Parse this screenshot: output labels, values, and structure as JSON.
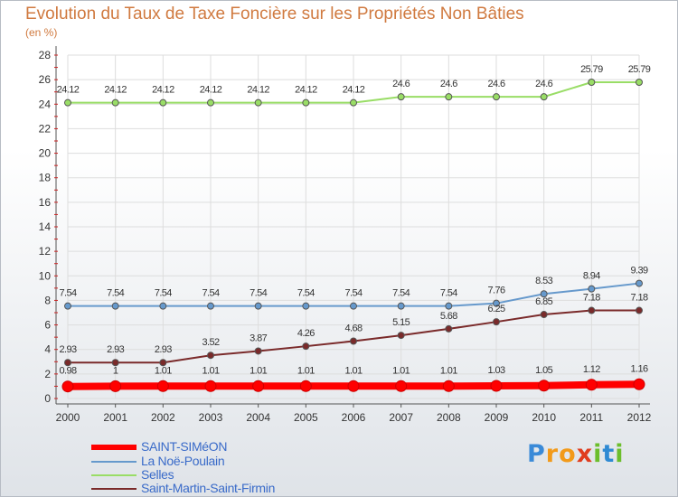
{
  "chart_data": {
    "type": "line",
    "title": "Evolution du Taux de Taxe Foncière sur les Propriétés Non Bâties",
    "ylabel": "(en %)",
    "xlabel": "",
    "ylim": [
      0,
      28
    ],
    "yticks": [
      0,
      2,
      4,
      6,
      8,
      10,
      12,
      14,
      16,
      18,
      20,
      22,
      24,
      26,
      28
    ],
    "categories": [
      "2000",
      "2001",
      "2002",
      "2003",
      "2004",
      "2005",
      "2006",
      "2007",
      "2008",
      "2009",
      "2010",
      "2011",
      "2012"
    ],
    "series": [
      {
        "name": "SAINT-SIMéON",
        "color": "#ff0000",
        "values": [
          0.98,
          1,
          1.01,
          1.01,
          1.01,
          1.01,
          1.01,
          1.01,
          1.01,
          1.03,
          1.05,
          1.12,
          1.16
        ],
        "labels": [
          "0.98",
          "1",
          "1.01",
          "1.01",
          "1.01",
          "1.01",
          "1.01",
          "1.01",
          "1.01",
          "1.03",
          "1.05",
          "1.12",
          "1.16"
        ]
      },
      {
        "name": "La Noë-Poulain",
        "color": "#6699cc",
        "values": [
          7.54,
          7.54,
          7.54,
          7.54,
          7.54,
          7.54,
          7.54,
          7.54,
          7.54,
          7.76,
          8.53,
          8.94,
          9.39
        ],
        "labels": [
          "7.54",
          "7.54",
          "7.54",
          "7.54",
          "7.54",
          "7.54",
          "7.54",
          "7.54",
          "7.54",
          "7.76",
          "8.53",
          "8.94",
          "9.39"
        ]
      },
      {
        "name": "Selles",
        "color": "#99dd66",
        "values": [
          24.12,
          24.12,
          24.12,
          24.12,
          24.12,
          24.12,
          24.12,
          24.6,
          24.6,
          24.6,
          24.6,
          25.79,
          25.79
        ],
        "labels": [
          "24.12",
          "24.12",
          "24.12",
          "24.12",
          "24.12",
          "24.12",
          "24.12",
          "24.6",
          "24.6",
          "24.6",
          "24.6",
          "25.79",
          "25.79"
        ]
      },
      {
        "name": "Saint-Martin-Saint-Firmin",
        "color": "#7a2a2a",
        "values": [
          2.93,
          2.93,
          2.93,
          3.52,
          3.87,
          4.26,
          4.68,
          5.15,
          5.68,
          6.25,
          6.85,
          7.18,
          7.18
        ],
        "labels": [
          "2.93",
          "2.93",
          "2.93",
          "3.52",
          "3.87",
          "4.26",
          "4.68",
          "5.15",
          "5.68",
          "6.25",
          "6.85",
          "7.18",
          "7.18"
        ]
      }
    ]
  },
  "legend": {
    "items": [
      "SAINT-SIMéON",
      "La Noë-Poulain",
      "Selles",
      "Saint-Martin-Saint-Firmin"
    ]
  },
  "brand": {
    "logo_text": "Proxiti",
    "letters": [
      "P",
      "r",
      "o",
      "x",
      "i",
      "t",
      "i"
    ],
    "letter_colors": [
      "#3a8ad8",
      "#f29a1a",
      "#f29a1a",
      "#e03c1e",
      "#6cbe2c",
      "#2f8ad3",
      "#6cbe2c"
    ]
  }
}
